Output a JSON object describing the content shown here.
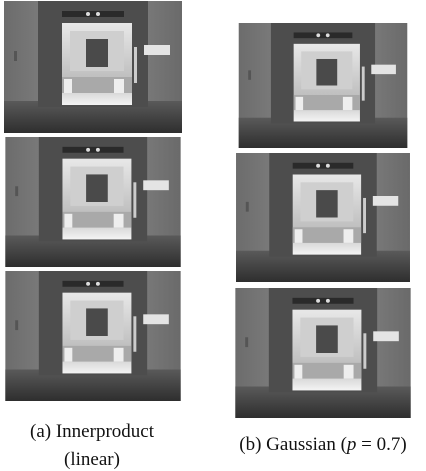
{
  "figure": {
    "panels": [
      {
        "caption_lines": [
          "(a) Innerproduct",
          "(linear)"
        ]
      },
      {
        "caption_parts": [
          "(b) Gaussian (",
          "p",
          " = 0.7)"
        ]
      }
    ]
  }
}
